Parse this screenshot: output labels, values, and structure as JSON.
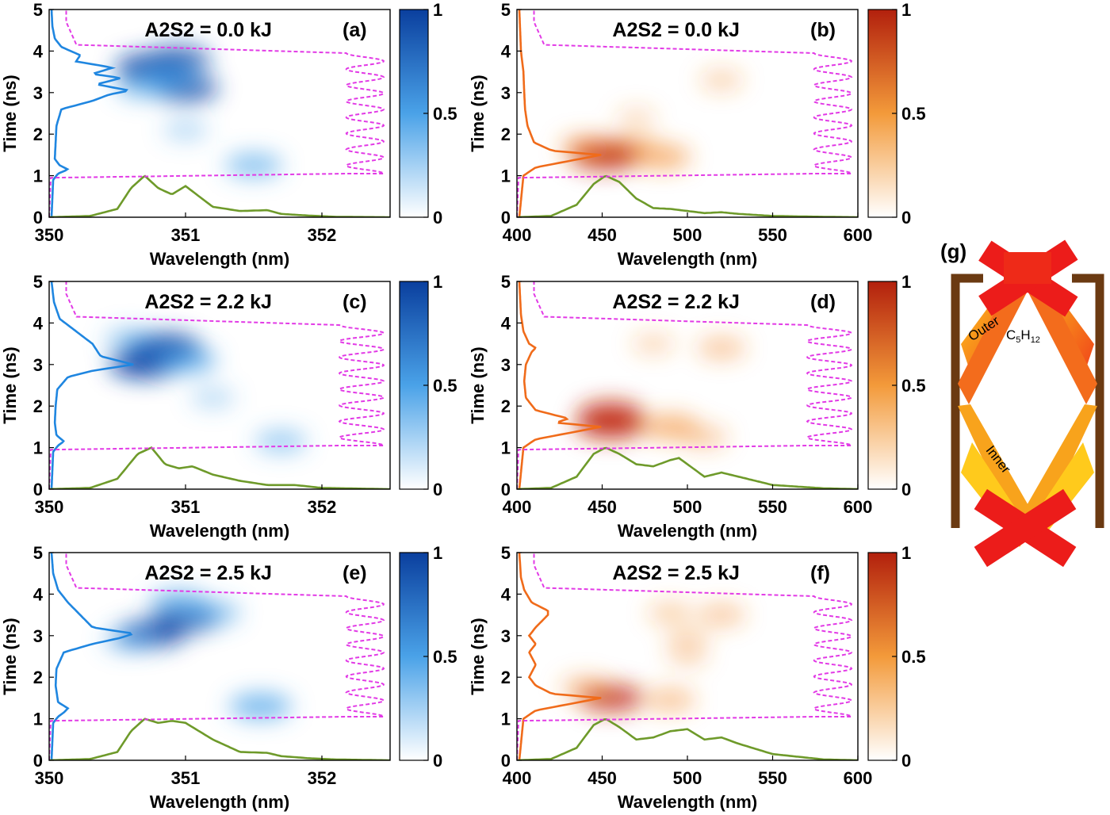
{
  "figure": {
    "panel_g": {
      "label": "(g)",
      "outer_label": "Outer",
      "inner_label": "Inner",
      "gas_label_main": "C",
      "gas_sub1": "5",
      "gas_mid": "H",
      "gas_sub2": "12",
      "wall_color": "#6b3a12",
      "beam_colors": [
        "#e8101a",
        "#f56a1c",
        "#ffd21c"
      ]
    }
  },
  "chart_data": [
    {
      "id": "a",
      "type": "heatmap",
      "panel_label": "(a)",
      "title": "A2S2 = 0.0 kJ",
      "xlabel": "Wavelength (nm)",
      "ylabel": "Time (ns)",
      "xlim": [
        350,
        352.5
      ],
      "ylim": [
        0,
        5
      ],
      "xticks": [
        "350",
        "351",
        "352"
      ],
      "xtick_values": [
        350,
        351,
        352
      ],
      "yticks": [
        "0",
        "1",
        "2",
        "3",
        "4",
        "5"
      ],
      "colormap": "blue",
      "colorbar_range": [
        0,
        1
      ],
      "colorbar_ticks": [
        "0",
        "0.5",
        "1"
      ],
      "blobs": [
        {
          "x": 350.75,
          "y": 3.6,
          "intensity": 0.95
        },
        {
          "x": 350.95,
          "y": 3.8,
          "intensity": 0.75
        },
        {
          "x": 351.0,
          "y": 3.1,
          "intensity": 0.8
        },
        {
          "x": 350.7,
          "y": 3.15,
          "intensity": 0.55
        },
        {
          "x": 350.9,
          "y": 3.4,
          "intensity": 0.6
        },
        {
          "x": 351.5,
          "y": 1.25,
          "intensity": 0.55
        },
        {
          "x": 351.0,
          "y": 2.1,
          "intensity": 0.2
        }
      ],
      "temporal_profile": {
        "t": [
          0,
          0.9,
          1.05,
          1.15,
          1.25,
          1.4,
          1.8,
          2.2,
          2.6,
          2.8,
          2.95,
          3.05,
          3.2,
          3.35,
          3.45,
          3.6,
          3.75,
          3.9,
          4.1,
          4.3,
          4.6,
          5
        ],
        "intensity": [
          0,
          0.02,
          0.08,
          0.2,
          0.1,
          0.04,
          0.05,
          0.06,
          0.12,
          0.5,
          0.7,
          0.95,
          0.55,
          0.85,
          0.5,
          0.75,
          0.3,
          0.35,
          0.12,
          0.04,
          0.01,
          0
        ]
      },
      "spectral_profile": {
        "x": [
          350,
          350.3,
          350.5,
          350.6,
          350.7,
          350.8,
          350.9,
          351.0,
          351.1,
          351.2,
          351.4,
          351.6,
          351.7,
          351.9,
          352.1,
          352.5
        ],
        "intensity": [
          0,
          0.03,
          0.2,
          0.7,
          1.0,
          0.7,
          0.55,
          0.75,
          0.5,
          0.25,
          0.15,
          0.17,
          0.08,
          0.04,
          0.01,
          0
        ]
      },
      "timing_fiducial": {
        "baseline_x": 352.5,
        "amplitude": 0.11,
        "start": 1.05,
        "end": 3.95,
        "cycles": 7.5
      }
    },
    {
      "id": "b",
      "type": "heatmap",
      "panel_label": "(b)",
      "title": "A2S2 = 0.0 kJ",
      "xlabel": "Wavelength (nm)",
      "ylabel": "Time (ns)",
      "xlim": [
        400,
        600
      ],
      "ylim": [
        0,
        5
      ],
      "xticks": [
        "400",
        "450",
        "500",
        "550",
        "600"
      ],
      "xtick_values": [
        400,
        450,
        500,
        550,
        600
      ],
      "yticks": [
        "0",
        "1",
        "2",
        "3",
        "4",
        "5"
      ],
      "colormap": "orange",
      "colorbar_range": [
        0,
        1
      ],
      "colorbar_ticks": [
        "0",
        "0.5",
        "1"
      ],
      "blobs": [
        {
          "x": 452,
          "y": 1.5,
          "intensity": 1.0
        },
        {
          "x": 485,
          "y": 1.45,
          "intensity": 0.55
        },
        {
          "x": 440,
          "y": 1.7,
          "intensity": 0.35
        },
        {
          "x": 470,
          "y": 1.75,
          "intensity": 0.2
        },
        {
          "x": 520,
          "y": 3.3,
          "intensity": 0.15
        },
        {
          "x": 470,
          "y": 2.4,
          "intensity": 0.06
        }
      ],
      "temporal_profile": {
        "t": [
          0,
          1.0,
          1.2,
          1.35,
          1.5,
          1.6,
          1.8,
          2.2,
          2.6,
          3.0,
          3.5,
          4.0,
          5
        ],
        "intensity": [
          0,
          0.05,
          0.2,
          0.6,
          1.0,
          0.4,
          0.18,
          0.1,
          0.07,
          0.06,
          0.05,
          0.02,
          0
        ]
      },
      "spectral_profile": {
        "x": [
          400,
          420,
          435,
          445,
          452,
          460,
          470,
          480,
          490,
          500,
          510,
          520,
          530,
          550,
          580,
          600
        ],
        "intensity": [
          0,
          0.03,
          0.3,
          0.8,
          1.0,
          0.85,
          0.45,
          0.22,
          0.2,
          0.15,
          0.1,
          0.12,
          0.08,
          0.03,
          0.01,
          0
        ]
      },
      "timing_fiducial": {
        "baseline_x": 600,
        "amplitude": 0.11,
        "start": 1.05,
        "end": 3.95,
        "cycles": 7.5
      }
    },
    {
      "id": "c",
      "type": "heatmap",
      "panel_label": "(c)",
      "title": "A2S2 = 2.2 kJ",
      "xlabel": "Wavelength (nm)",
      "ylabel": "Time (ns)",
      "xlim": [
        350,
        352.5
      ],
      "ylim": [
        0,
        5
      ],
      "xticks": [
        "350",
        "351",
        "352"
      ],
      "xtick_values": [
        350,
        351,
        352
      ],
      "yticks": [
        "0",
        "1",
        "2",
        "3",
        "4",
        "5"
      ],
      "colormap": "blue",
      "colorbar_range": [
        0,
        1
      ],
      "colorbar_ticks": [
        "0",
        "0.5",
        "1"
      ],
      "blobs": [
        {
          "x": 350.85,
          "y": 3.4,
          "intensity": 1.0
        },
        {
          "x": 350.7,
          "y": 3.0,
          "intensity": 0.95
        },
        {
          "x": 351.0,
          "y": 3.1,
          "intensity": 0.7
        },
        {
          "x": 350.6,
          "y": 3.6,
          "intensity": 0.4
        },
        {
          "x": 351.2,
          "y": 2.2,
          "intensity": 0.18
        },
        {
          "x": 351.7,
          "y": 1.15,
          "intensity": 0.4
        }
      ],
      "temporal_profile": {
        "t": [
          0,
          0.9,
          1.05,
          1.15,
          1.3,
          1.6,
          2.0,
          2.4,
          2.7,
          2.85,
          3.0,
          3.2,
          3.5,
          3.8,
          4.1,
          4.5,
          5
        ],
        "intensity": [
          0,
          0.02,
          0.08,
          0.15,
          0.06,
          0.04,
          0.05,
          0.07,
          0.2,
          0.5,
          1.0,
          0.6,
          0.5,
          0.3,
          0.1,
          0.03,
          0
        ]
      },
      "spectral_profile": {
        "x": [
          350,
          350.3,
          350.5,
          350.65,
          350.75,
          350.85,
          350.95,
          351.05,
          351.2,
          351.4,
          351.6,
          351.8,
          352.0,
          352.5
        ],
        "intensity": [
          0,
          0.03,
          0.25,
          0.85,
          1.0,
          0.6,
          0.5,
          0.55,
          0.35,
          0.2,
          0.1,
          0.1,
          0.03,
          0
        ]
      },
      "timing_fiducial": {
        "baseline_x": 352.5,
        "amplitude": 0.13,
        "start": 1.05,
        "end": 3.95,
        "cycles": 7.5
      }
    },
    {
      "id": "d",
      "type": "heatmap",
      "panel_label": "(d)",
      "title": "A2S2 = 2.2 kJ",
      "xlabel": "Wavelength (nm)",
      "ylabel": "Time (ns)",
      "xlim": [
        400,
        600
      ],
      "ylim": [
        0,
        5
      ],
      "xticks": [
        "400",
        "450",
        "500",
        "550",
        "600"
      ],
      "xtick_values": [
        400,
        450,
        500,
        550,
        600
      ],
      "yticks": [
        "0",
        "1",
        "2",
        "3",
        "4",
        "5"
      ],
      "colormap": "orange",
      "colorbar_range": [
        0,
        1
      ],
      "colorbar_ticks": [
        "0",
        "0.5",
        "1"
      ],
      "blobs": [
        {
          "x": 455,
          "y": 1.55,
          "intensity": 0.9
        },
        {
          "x": 455,
          "y": 1.8,
          "intensity": 0.75
        },
        {
          "x": 490,
          "y": 1.5,
          "intensity": 0.55
        },
        {
          "x": 510,
          "y": 1.25,
          "intensity": 0.25
        },
        {
          "x": 520,
          "y": 3.4,
          "intensity": 0.3
        },
        {
          "x": 480,
          "y": 3.5,
          "intensity": 0.12
        }
      ],
      "temporal_profile": {
        "t": [
          0,
          1.0,
          1.2,
          1.35,
          1.5,
          1.6,
          1.7,
          1.9,
          2.2,
          2.6,
          3.0,
          3.3,
          3.4,
          3.5,
          3.8,
          4.2,
          5
        ],
        "intensity": [
          0,
          0.05,
          0.2,
          0.6,
          1.0,
          0.45,
          0.6,
          0.2,
          0.08,
          0.06,
          0.08,
          0.15,
          0.2,
          0.12,
          0.05,
          0.02,
          0
        ]
      },
      "spectral_profile": {
        "x": [
          400,
          420,
          435,
          445,
          452,
          460,
          470,
          480,
          490,
          495,
          500,
          510,
          520,
          530,
          550,
          580,
          600
        ],
        "intensity": [
          0,
          0.03,
          0.3,
          0.85,
          1.0,
          0.85,
          0.6,
          0.55,
          0.7,
          0.75,
          0.6,
          0.3,
          0.4,
          0.3,
          0.1,
          0.02,
          0
        ]
      },
      "timing_fiducial": {
        "baseline_x": 600,
        "amplitude": 0.13,
        "start": 1.05,
        "end": 3.95,
        "cycles": 7.5
      }
    },
    {
      "id": "e",
      "type": "heatmap",
      "panel_label": "(e)",
      "title": "A2S2 = 2.5 kJ",
      "xlabel": "Wavelength (nm)",
      "ylabel": "Time (ns)",
      "xlim": [
        350,
        352.5
      ],
      "ylim": [
        0,
        5
      ],
      "xticks": [
        "350",
        "351",
        "352"
      ],
      "xtick_values": [
        350,
        351,
        352
      ],
      "yticks": [
        "0",
        "1",
        "2",
        "3",
        "4",
        "5"
      ],
      "colormap": "blue",
      "colorbar_range": [
        0,
        1
      ],
      "colorbar_ticks": [
        "0",
        "0.5",
        "1"
      ],
      "blobs": [
        {
          "x": 350.75,
          "y": 3.05,
          "intensity": 0.85
        },
        {
          "x": 351.0,
          "y": 3.4,
          "intensity": 0.8
        },
        {
          "x": 350.95,
          "y": 3.8,
          "intensity": 0.6
        },
        {
          "x": 351.2,
          "y": 3.55,
          "intensity": 0.5
        },
        {
          "x": 350.6,
          "y": 2.9,
          "intensity": 0.45
        },
        {
          "x": 351.55,
          "y": 1.3,
          "intensity": 0.7
        }
      ],
      "temporal_profile": {
        "t": [
          0,
          0.9,
          1.05,
          1.15,
          1.25,
          1.4,
          1.8,
          2.2,
          2.6,
          2.8,
          2.95,
          3.05,
          3.2,
          3.5,
          3.8,
          4.1,
          4.5,
          5
        ],
        "intensity": [
          0,
          0.02,
          0.08,
          0.15,
          0.2,
          0.08,
          0.05,
          0.06,
          0.15,
          0.5,
          0.85,
          1.0,
          0.5,
          0.35,
          0.2,
          0.08,
          0.02,
          0
        ]
      },
      "spectral_profile": {
        "x": [
          350,
          350.3,
          350.5,
          350.6,
          350.7,
          350.8,
          350.9,
          351.0,
          351.1,
          351.2,
          351.4,
          351.6,
          351.7,
          351.9,
          352.1,
          352.5
        ],
        "intensity": [
          0,
          0.03,
          0.2,
          0.7,
          1.0,
          0.9,
          0.95,
          0.9,
          0.7,
          0.5,
          0.2,
          0.18,
          0.1,
          0.05,
          0.02,
          0
        ]
      },
      "timing_fiducial": {
        "baseline_x": 352.5,
        "amplitude": 0.11,
        "start": 1.05,
        "end": 3.95,
        "cycles": 7.5
      }
    },
    {
      "id": "f",
      "type": "heatmap",
      "panel_label": "(f)",
      "title": "A2S2 = 2.5 kJ",
      "xlabel": "Wavelength (nm)",
      "ylabel": "Time (ns)",
      "xlim": [
        400,
        600
      ],
      "ylim": [
        0,
        5
      ],
      "xticks": [
        "400",
        "450",
        "500",
        "550",
        "600"
      ],
      "xtick_values": [
        400,
        450,
        500,
        550,
        600
      ],
      "yticks": [
        "0",
        "1",
        "2",
        "3",
        "4",
        "5"
      ],
      "colormap": "orange",
      "colorbar_range": [
        0,
        1
      ],
      "colorbar_ticks": [
        "0",
        "0.5",
        "1"
      ],
      "blobs": [
        {
          "x": 455,
          "y": 1.5,
          "intensity": 0.8
        },
        {
          "x": 440,
          "y": 1.75,
          "intensity": 0.3
        },
        {
          "x": 490,
          "y": 1.45,
          "intensity": 0.35
        },
        {
          "x": 520,
          "y": 3.5,
          "intensity": 0.28
        },
        {
          "x": 490,
          "y": 3.55,
          "intensity": 0.2
        },
        {
          "x": 500,
          "y": 2.9,
          "intensity": 0.15
        },
        {
          "x": 500,
          "y": 2.5,
          "intensity": 0.08
        }
      ],
      "temporal_profile": {
        "t": [
          0,
          1.0,
          1.2,
          1.35,
          1.5,
          1.6,
          1.8,
          2.0,
          2.3,
          2.6,
          2.8,
          3.0,
          3.2,
          3.5,
          3.6,
          3.8,
          4.1,
          4.4,
          5
        ],
        "intensity": [
          0,
          0.05,
          0.2,
          0.6,
          1.0,
          0.4,
          0.2,
          0.12,
          0.2,
          0.12,
          0.2,
          0.12,
          0.2,
          0.35,
          0.35,
          0.15,
          0.06,
          0.02,
          0
        ]
      },
      "spectral_profile": {
        "x": [
          400,
          420,
          435,
          445,
          452,
          460,
          470,
          480,
          490,
          500,
          510,
          520,
          530,
          550,
          580,
          600
        ],
        "intensity": [
          0,
          0.03,
          0.3,
          0.85,
          1.0,
          0.8,
          0.5,
          0.55,
          0.7,
          0.75,
          0.5,
          0.55,
          0.4,
          0.15,
          0.02,
          0
        ]
      },
      "timing_fiducial": {
        "baseline_x": 600,
        "amplitude": 0.11,
        "start": 1.05,
        "end": 3.95,
        "cycles": 7.5
      }
    }
  ]
}
